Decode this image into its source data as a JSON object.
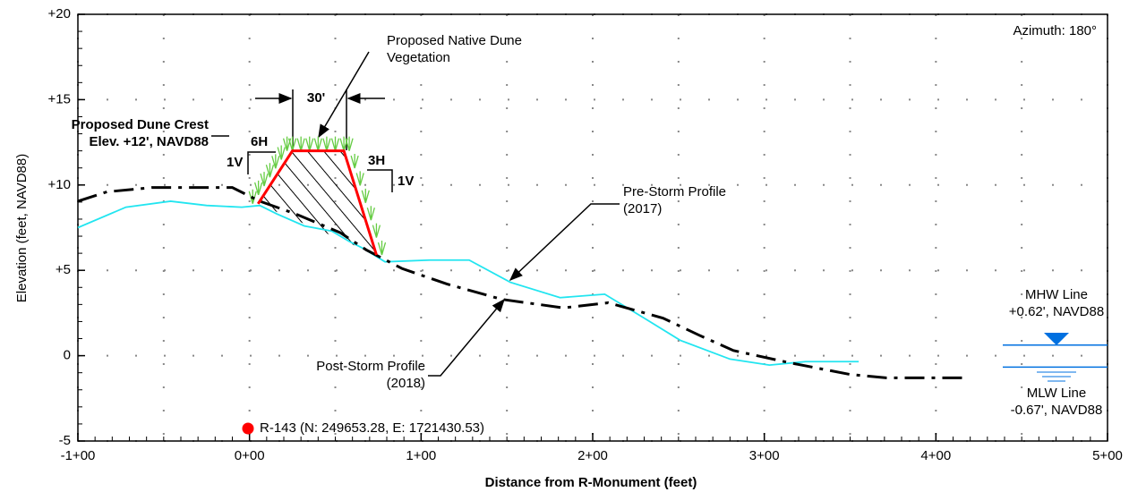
{
  "chart_data": {
    "type": "line",
    "x_label": "Distance from R-Monument (feet)",
    "y_label": "Elevation (feet, NAVD88)",
    "xlim": [
      -100,
      500
    ],
    "ylim": [
      -5,
      20
    ],
    "xticks": [
      {
        "value": -100,
        "label": "-1+00"
      },
      {
        "value": 0,
        "label": "0+00"
      },
      {
        "value": 100,
        "label": "1+00"
      },
      {
        "value": 200,
        "label": "2+00"
      },
      {
        "value": 300,
        "label": "3+00"
      },
      {
        "value": 400,
        "label": "4+00"
      },
      {
        "value": 500,
        "label": "5+00"
      }
    ],
    "yticks": [
      {
        "value": -5,
        "label": "-5"
      },
      {
        "value": 0,
        "label": "0"
      },
      {
        "value": 5,
        "label": "+5"
      },
      {
        "value": 10,
        "label": "+10"
      },
      {
        "value": 15,
        "label": "+15"
      },
      {
        "value": 20,
        "label": "+20"
      }
    ],
    "grid": true,
    "series": [
      {
        "name": "Pre-Storm Profile (2017)",
        "color": "#22e5f0",
        "style": "solid",
        "x": [
          -100,
          -72,
          -46,
          -25,
          -4.5,
          6,
          16,
          32,
          48,
          58,
          66,
          79,
          105,
          128,
          152,
          181,
          207,
          230,
          251,
          280,
          303,
          324,
          355
        ],
        "values": [
          7.5,
          8.7,
          9.05,
          8.8,
          8.7,
          8.8,
          8.3,
          7.6,
          7.3,
          6.7,
          6.3,
          5.5,
          5.6,
          5.6,
          4.3,
          3.4,
          3.6,
          2.2,
          0.9,
          -0.2,
          -0.55,
          -0.35,
          -0.35
        ]
      },
      {
        "name": "Post-Storm Profile (2018)",
        "color": "#000000",
        "style": "dashdot",
        "x": [
          -100,
          -83,
          -57,
          -10,
          6,
          27,
          53,
          68,
          89,
          115,
          147,
          183,
          209,
          241,
          262,
          282,
          314,
          350,
          371,
          418
        ],
        "values": [
          9.05,
          9.6,
          9.85,
          9.85,
          9.05,
          8.3,
          7.2,
          6.2,
          5.1,
          4.2,
          3.3,
          2.8,
          3.1,
          2.2,
          1.2,
          0.3,
          -0.4,
          -1.1,
          -1.3,
          -1.3
        ]
      }
    ],
    "proposed_dune": {
      "color": "#ff0000",
      "x": [
        5,
        25,
        55,
        74
      ],
      "values": [
        8.9,
        12,
        12,
        5.9
      ]
    },
    "reference_lines": [
      {
        "name": "MHW Line",
        "label": "+0.62', NAVD88",
        "value": 0.62,
        "color": "#0070e0"
      },
      {
        "name": "MLW Line",
        "label": "-0.67', NAVD88",
        "value": -0.67,
        "color": "#0070e0"
      }
    ],
    "annotations": [
      "Azimuth: 180°",
      "Proposed Native Dune Vegetation",
      "Proposed Dune Crest Elev. +12', NAVD88",
      "30'",
      "6H",
      "1V",
      "3H",
      "1V",
      "R-143 (N: 249653.28, E: 1721430.53)"
    ],
    "marker_color": "#ff0000"
  }
}
